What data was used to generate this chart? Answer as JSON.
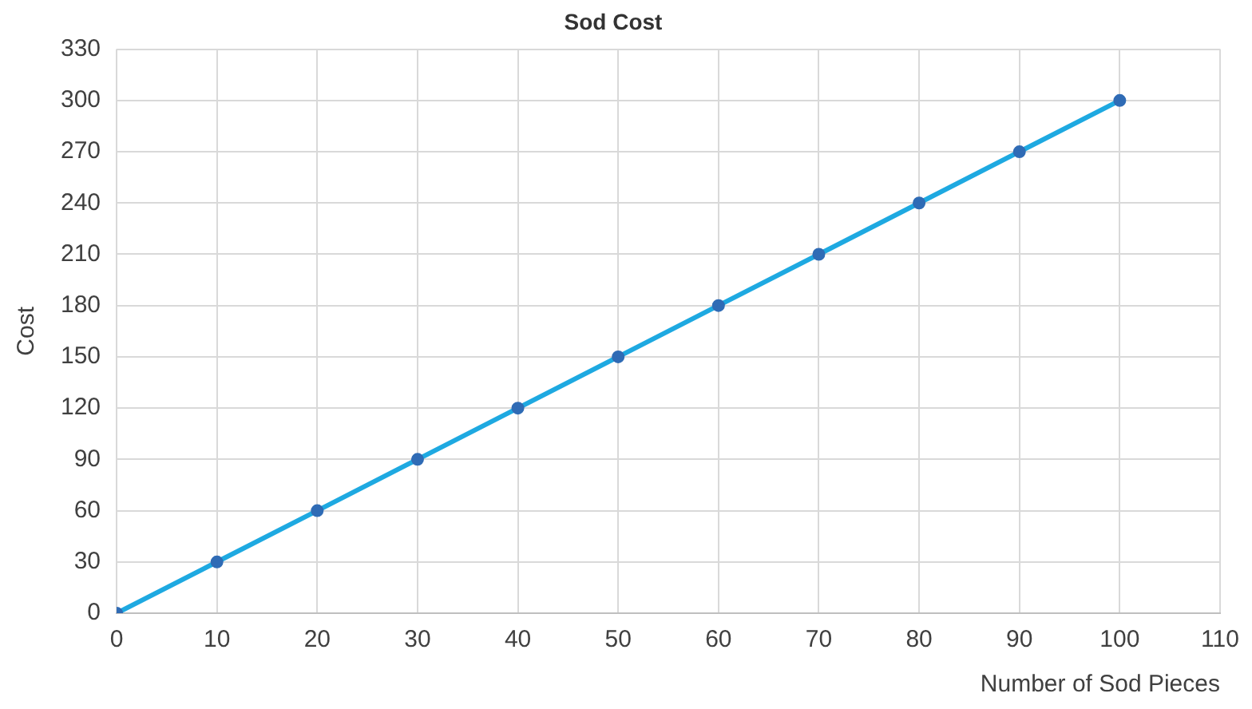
{
  "chart_data": {
    "type": "line",
    "title": "Sod Cost",
    "xlabel": "Number of Sod Pieces",
    "ylabel": "Cost",
    "x": [
      0,
      10,
      20,
      30,
      40,
      50,
      60,
      70,
      80,
      90,
      100
    ],
    "series": [
      {
        "color": "#1ea9e1",
        "values": [
          0,
          30,
          60,
          90,
          120,
          150,
          180,
          210,
          240,
          270,
          300
        ]
      }
    ],
    "xlim": [
      0,
      110
    ],
    "xticks": [
      0,
      10,
      20,
      30,
      40,
      50,
      60,
      70,
      80,
      90,
      100,
      110
    ],
    "ylim": [
      0,
      330
    ],
    "yticks": [
      0,
      30,
      60,
      90,
      120,
      150,
      180,
      210,
      240,
      270,
      300,
      330
    ],
    "grid": true,
    "legend": false,
    "marker": "circle",
    "line_style": "solid"
  }
}
